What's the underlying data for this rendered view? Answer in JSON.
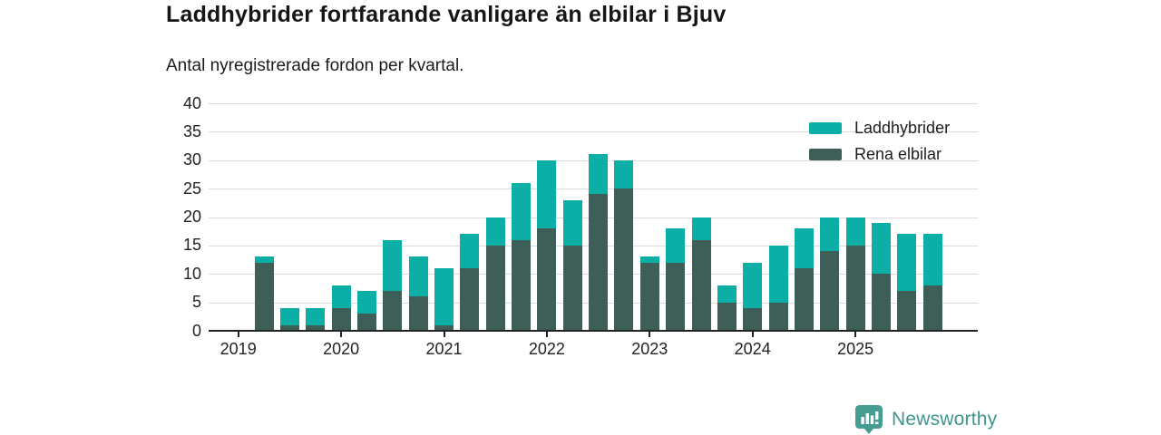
{
  "title": "Laddhybrider fortfarande vanligare än elbilar i Bjuv",
  "subtitle": "Antal nyregistrerade fordon per kvartal.",
  "colors": {
    "hybrid": "#0cafa5",
    "ev": "#3e5f58",
    "gridline": "#dcdcdc",
    "axis": "#222222",
    "logo_badge": "#479c92",
    "logo_text": "#3e968c"
  },
  "legend": {
    "items": [
      {
        "label": "Laddhybrider",
        "color": "#0cafa5"
      },
      {
        "label": "Rena elbilar",
        "color": "#3e5f58"
      }
    ]
  },
  "footer": {
    "brand": "Newsworthy"
  },
  "chart_data": {
    "type": "bar",
    "stacked": true,
    "title": "Laddhybrider fortfarande vanligare än elbilar i Bjuv",
    "subtitle": "Antal nyregistrerade fordon per kvartal.",
    "categories": [
      "2019 Q1",
      "2019 Q2",
      "2019 Q3",
      "2019 Q4",
      "2020 Q1",
      "2020 Q2",
      "2020 Q3",
      "2020 Q4",
      "2021 Q1",
      "2021 Q2",
      "2021 Q3",
      "2021 Q4",
      "2022 Q1",
      "2022 Q2",
      "2022 Q3",
      "2022 Q4",
      "2023 Q1",
      "2023 Q2",
      "2023 Q3",
      "2023 Q4",
      "2024 Q1",
      "2024 Q2",
      "2024 Q3",
      "2024 Q4",
      "2025 Q1",
      "2025 Q2",
      "2025 Q3",
      "2025 Q4"
    ],
    "series": [
      {
        "name": "Laddhybrider",
        "color": "#0cafa5",
        "values": [
          0,
          1,
          3,
          3,
          4,
          4,
          9,
          7,
          10,
          6,
          5,
          10,
          12,
          8,
          7,
          5,
          1,
          6,
          4,
          3,
          8,
          10,
          7,
          6,
          5,
          9,
          10,
          9
        ]
      },
      {
        "name": "Rena elbilar",
        "color": "#3e5f58",
        "values": [
          0,
          12,
          1,
          1,
          4,
          3,
          7,
          6,
          1,
          11,
          15,
          16,
          18,
          15,
          24,
          25,
          12,
          12,
          16,
          5,
          4,
          5,
          11,
          14,
          15,
          10,
          7,
          8
        ]
      }
    ],
    "stack_bottom_to_top": [
      "Rena elbilar",
      "Laddhybrider"
    ],
    "ylim": [
      0,
      40
    ],
    "ytick_step": 5,
    "ytick_labels": [
      "0",
      "5",
      "10",
      "15",
      "20",
      "25",
      "30",
      "35",
      "40"
    ],
    "xtick_labels": [
      "2019",
      "2020",
      "2021",
      "2022",
      "2023",
      "2024",
      "2025"
    ],
    "grid": "horizontal",
    "legend_position": "top-right"
  }
}
